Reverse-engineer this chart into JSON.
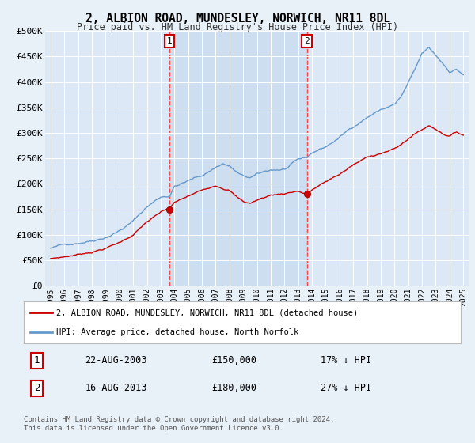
{
  "title": "2, ALBION ROAD, MUNDESLEY, NORWICH, NR11 8DL",
  "subtitle": "Price paid vs. HM Land Registry's House Price Index (HPI)",
  "background_color": "#e8f0f8",
  "plot_bg_color": "#dce8f5",
  "fill_between_color": "#ccddf0",
  "legend_label_red": "2, ALBION ROAD, MUNDESLEY, NORWICH, NR11 8DL (detached house)",
  "legend_label_blue": "HPI: Average price, detached house, North Norfolk",
  "transaction1_date": "22-AUG-2003",
  "transaction1_price": 150000,
  "transaction1_hpi_diff": "17% ↓ HPI",
  "transaction2_date": "16-AUG-2013",
  "transaction2_price": 180000,
  "transaction2_hpi_diff": "27% ↓ HPI",
  "footer": "Contains HM Land Registry data © Crown copyright and database right 2024.\nThis data is licensed under the Open Government Licence v3.0.",
  "ylim": [
    0,
    500000
  ],
  "yticks": [
    0,
    50000,
    100000,
    150000,
    200000,
    250000,
    300000,
    350000,
    400000,
    450000,
    500000
  ],
  "red_color": "#cc0000",
  "blue_color": "#6699cc",
  "vline_color": "#ff4444",
  "marker_color": "#cc0000",
  "t1_year": 2003.64,
  "t2_year": 2013.62,
  "t1_val": 150000,
  "t2_val": 180000
}
